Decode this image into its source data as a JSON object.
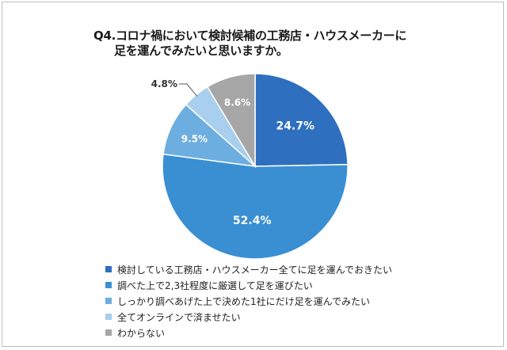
{
  "title": {
    "line1": "Q4.コロナ禍において検討候補の工務店・ハウスメーカーに",
    "line2": "足を運んでみたいと思いますか。"
  },
  "chart_data": {
    "type": "pie",
    "start_angle_deg": 0,
    "direction": "clockwise",
    "slices": [
      {
        "label": "検討している工務店・ハウスメーカー全てに足を運んでおきたい",
        "value": 24.7,
        "value_label": "24.7%",
        "color": "#2E6FBF"
      },
      {
        "label": "調べた上で2,3社程度に厳選して足を運びたい",
        "value": 52.4,
        "value_label": "52.4%",
        "color": "#3A8FD3"
      },
      {
        "label": "しっかり調べあげた上で決めた1社にだけ足を運んでみたい",
        "value": 9.5,
        "value_label": "9.5%",
        "color": "#6CAEDF"
      },
      {
        "label": "全てオンラインで済ませたい",
        "value": 4.8,
        "value_label": "4.8%",
        "color": "#A8CFEE"
      },
      {
        "label": "わからない",
        "value": 8.6,
        "value_label": "8.6%",
        "color": "#A6A6A6"
      }
    ],
    "legend_position": "bottom"
  }
}
